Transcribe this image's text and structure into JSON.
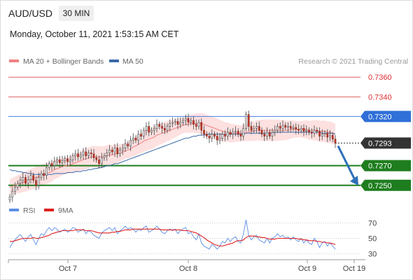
{
  "header": {
    "symbol": "AUD/USD",
    "timeframe": "30 MIN",
    "timestamp": "Monday, October 11, 2021 1:53:15 AM CET"
  },
  "legend": {
    "ma20": "MA 20 + Bollinger Bands",
    "ma50": "MA 50",
    "copyright": "Research © 2021 Trading Central"
  },
  "rsi_legend": {
    "rsi": "RSI",
    "ma9": "9MA"
  },
  "colors": {
    "ma20": "#f08080",
    "ma50": "#3a6aa8",
    "bollinger_fill": "#fde0e0",
    "resistance": "#e06060",
    "pivot": "#4a80e0",
    "support": "#1e7d1e",
    "current": "#333333",
    "arrow": "#2e6fb8",
    "rsi": "#5b8ee6",
    "ma9": "#e02020"
  },
  "chart_data": [
    {
      "type": "candlestick",
      "title": "AUD/USD 30 MIN",
      "x_labels": [
        "Oct 7",
        "Oct 8",
        "Oct 9",
        "Oct 19"
      ],
      "ylim": [
        0.7242,
        0.7368
      ],
      "levels": [
        {
          "label": "0.7360",
          "value": 0.736,
          "kind": "resistance"
        },
        {
          "label": "0.7340",
          "value": 0.734,
          "kind": "resistance"
        },
        {
          "label": "0.7320",
          "value": 0.732,
          "kind": "pivot"
        },
        {
          "label": "0.7293",
          "value": 0.7293,
          "kind": "current"
        },
        {
          "label": "0.7270",
          "value": 0.727,
          "kind": "support"
        },
        {
          "label": "0.7250",
          "value": 0.725,
          "kind": "support"
        }
      ],
      "close": [
        0.7238,
        0.7244,
        0.7248,
        0.7252,
        0.7255,
        0.7258,
        0.7252,
        0.7256,
        0.726,
        0.7255,
        0.725,
        0.7258,
        0.7262,
        0.726,
        0.7268,
        0.7272,
        0.727,
        0.7274,
        0.7276,
        0.7273,
        0.7275,
        0.7277,
        0.7274,
        0.7276,
        0.728,
        0.7282,
        0.7279,
        0.7281,
        0.7284,
        0.728,
        0.7283,
        0.7282,
        0.7278,
        0.7276,
        0.7272,
        0.7278,
        0.728,
        0.7283,
        0.7286,
        0.7284,
        0.7288,
        0.7282,
        0.7286,
        0.7288,
        0.7292,
        0.729,
        0.7296,
        0.7298,
        0.7296,
        0.7302,
        0.73,
        0.7306,
        0.731,
        0.7304,
        0.7306,
        0.7308,
        0.7312,
        0.731,
        0.7308,
        0.7306,
        0.731,
        0.7313,
        0.7314,
        0.7315,
        0.7312,
        0.7314,
        0.7316,
        0.7318,
        0.7314,
        0.7316,
        0.7312,
        0.731,
        0.7314,
        0.7306,
        0.7302,
        0.73,
        0.7298,
        0.7302,
        0.73,
        0.7296,
        0.7298,
        0.7302,
        0.73,
        0.7304,
        0.7302,
        0.7304,
        0.7305,
        0.7302,
        0.73,
        0.7308,
        0.7322,
        0.731,
        0.7306,
        0.7308,
        0.731,
        0.7306,
        0.7302,
        0.73,
        0.7304,
        0.73,
        0.7304,
        0.7306,
        0.731,
        0.7308,
        0.7311,
        0.7309,
        0.731,
        0.7308,
        0.7309,
        0.7307,
        0.7306,
        0.7308,
        0.7305,
        0.7306,
        0.7304,
        0.7303,
        0.7306,
        0.7305,
        0.73,
        0.7302,
        0.7303,
        0.7299,
        0.7301,
        0.7297,
        0.7293
      ],
      "ma20": [
        0.7248,
        0.7249,
        0.725,
        0.7251,
        0.7252,
        0.7253,
        0.7254,
        0.7255,
        0.7256,
        0.7257,
        0.7258,
        0.7259,
        0.726,
        0.7261,
        0.7262,
        0.7263,
        0.7264,
        0.7266,
        0.7267,
        0.7268,
        0.7269,
        0.727,
        0.727,
        0.7271,
        0.7272,
        0.7273,
        0.7274,
        0.7275,
        0.7276,
        0.7277,
        0.7278,
        0.7279,
        0.7279,
        0.7279,
        0.7279,
        0.7279,
        0.7279,
        0.728,
        0.7281,
        0.7281,
        0.7282,
        0.7282,
        0.7283,
        0.7284,
        0.7285,
        0.7286,
        0.7287,
        0.7289,
        0.729,
        0.7292,
        0.7293,
        0.7295,
        0.7296,
        0.7297,
        0.7298,
        0.7299,
        0.7301,
        0.7302,
        0.7303,
        0.7304,
        0.7305,
        0.7306,
        0.7307,
        0.7308,
        0.7309,
        0.731,
        0.7311,
        0.7312,
        0.7312,
        0.7313,
        0.7313,
        0.7313,
        0.7313,
        0.7313,
        0.7312,
        0.7311,
        0.731,
        0.7309,
        0.7308,
        0.7307,
        0.7306,
        0.7305,
        0.7304,
        0.7304,
        0.7303,
        0.7303,
        0.7303,
        0.7303,
        0.7303,
        0.7303,
        0.7304,
        0.7304,
        0.7305,
        0.7305,
        0.7306,
        0.7306,
        0.7306,
        0.7306,
        0.7306,
        0.7306,
        0.7306,
        0.7306,
        0.7306,
        0.7306,
        0.7306,
        0.7306,
        0.7306,
        0.7307,
        0.7307,
        0.7307,
        0.7307,
        0.7307,
        0.7307,
        0.7307,
        0.7306,
        0.7306,
        0.7306,
        0.7306,
        0.7305,
        0.7305,
        0.7305,
        0.7304,
        0.7304,
        0.7303,
        0.7302
      ],
      "ma50": [
        0.7266,
        0.7265,
        0.7265,
        0.7264,
        0.7264,
        0.7263,
        0.7263,
        0.7262,
        0.7262,
        0.7261,
        0.7261,
        0.7261,
        0.7261,
        0.7261,
        0.7261,
        0.7261,
        0.7261,
        0.7262,
        0.7262,
        0.7262,
        0.7262,
        0.7262,
        0.7263,
        0.7263,
        0.7263,
        0.7264,
        0.7264,
        0.7264,
        0.7265,
        0.7265,
        0.7266,
        0.7266,
        0.7267,
        0.7267,
        0.7268,
        0.7268,
        0.7269,
        0.727,
        0.727,
        0.7271,
        0.7272,
        0.7272,
        0.7273,
        0.7274,
        0.7275,
        0.7276,
        0.7277,
        0.7278,
        0.7279,
        0.728,
        0.7281,
        0.7282,
        0.7283,
        0.7284,
        0.7285,
        0.7286,
        0.7287,
        0.7288,
        0.7289,
        0.729,
        0.7291,
        0.7292,
        0.7293,
        0.7294,
        0.7295,
        0.7296,
        0.7297,
        0.7298,
        0.7298,
        0.7299,
        0.73,
        0.73,
        0.7301,
        0.7301,
        0.7301,
        0.7302,
        0.7302,
        0.7302,
        0.7302,
        0.7302,
        0.7302,
        0.7302,
        0.7302,
        0.7302,
        0.7302,
        0.7302,
        0.7302,
        0.7302,
        0.7302,
        0.7302,
        0.7303,
        0.7303,
        0.7303,
        0.7303,
        0.7303,
        0.7303,
        0.7303,
        0.7303,
        0.7303,
        0.7303,
        0.7303,
        0.7304,
        0.7304,
        0.7304,
        0.7304,
        0.7304,
        0.7304,
        0.7304,
        0.7304,
        0.7304,
        0.7304,
        0.7304,
        0.7304,
        0.7304,
        0.7304,
        0.7304,
        0.7304,
        0.7304,
        0.7304,
        0.7303,
        0.7303,
        0.7303,
        0.7303,
        0.7303,
        0.7302
      ]
    },
    {
      "type": "line",
      "title": "RSI",
      "yticks": [
        70,
        50,
        30
      ],
      "ylim": [
        25,
        75
      ],
      "series": [
        {
          "name": "RSI",
          "values": [
            38,
            44,
            48,
            52,
            55,
            50,
            46,
            52,
            55,
            48,
            42,
            50,
            56,
            54,
            60,
            64,
            60,
            64,
            62,
            58,
            60,
            62,
            58,
            60,
            64,
            63,
            58,
            60,
            62,
            56,
            60,
            58,
            54,
            52,
            50,
            57,
            60,
            62,
            64,
            60,
            64,
            56,
            60,
            62,
            66,
            62,
            64,
            62,
            58,
            62,
            60,
            64,
            66,
            58,
            60,
            62,
            66,
            62,
            58,
            56,
            60,
            62,
            60,
            62,
            56,
            60,
            62,
            64,
            56,
            58,
            52,
            48,
            56,
            44,
            40,
            38,
            36,
            42,
            40,
            36,
            40,
            46,
            44,
            50,
            46,
            50,
            52,
            46,
            44,
            56,
            74,
            54,
            48,
            52,
            54,
            48,
            46,
            44,
            50,
            44,
            50,
            52,
            56,
            52,
            54,
            50,
            52,
            48,
            52,
            48,
            46,
            50,
            44,
            48,
            44,
            42,
            50,
            46,
            38,
            44,
            46,
            40,
            44,
            40,
            36
          ]
        },
        {
          "name": "9MA",
          "values": [
            46,
            46,
            47,
            48,
            49,
            50,
            50,
            50,
            50,
            51,
            50,
            50,
            51,
            52,
            53,
            54,
            56,
            57,
            58,
            59,
            60,
            60,
            60,
            60,
            60,
            61,
            61,
            61,
            61,
            60,
            60,
            60,
            59,
            58,
            57,
            57,
            57,
            57,
            57,
            58,
            58,
            59,
            59,
            60,
            61,
            61,
            61,
            62,
            62,
            62,
            62,
            62,
            62,
            62,
            62,
            62,
            62,
            62,
            61,
            61,
            61,
            61,
            61,
            61,
            61,
            61,
            60,
            60,
            60,
            59,
            58,
            57,
            55,
            53,
            51,
            48,
            46,
            44,
            42,
            41,
            40,
            40,
            41,
            42,
            43,
            44,
            46,
            47,
            47,
            48,
            51,
            53,
            53,
            53,
            52,
            52,
            51,
            51,
            50,
            49,
            49,
            49,
            50,
            50,
            50,
            50,
            50,
            50,
            50,
            50,
            49,
            49,
            48,
            48,
            47,
            47,
            47,
            46,
            46,
            45,
            45,
            44,
            44,
            43,
            42
          ]
        }
      ]
    }
  ]
}
